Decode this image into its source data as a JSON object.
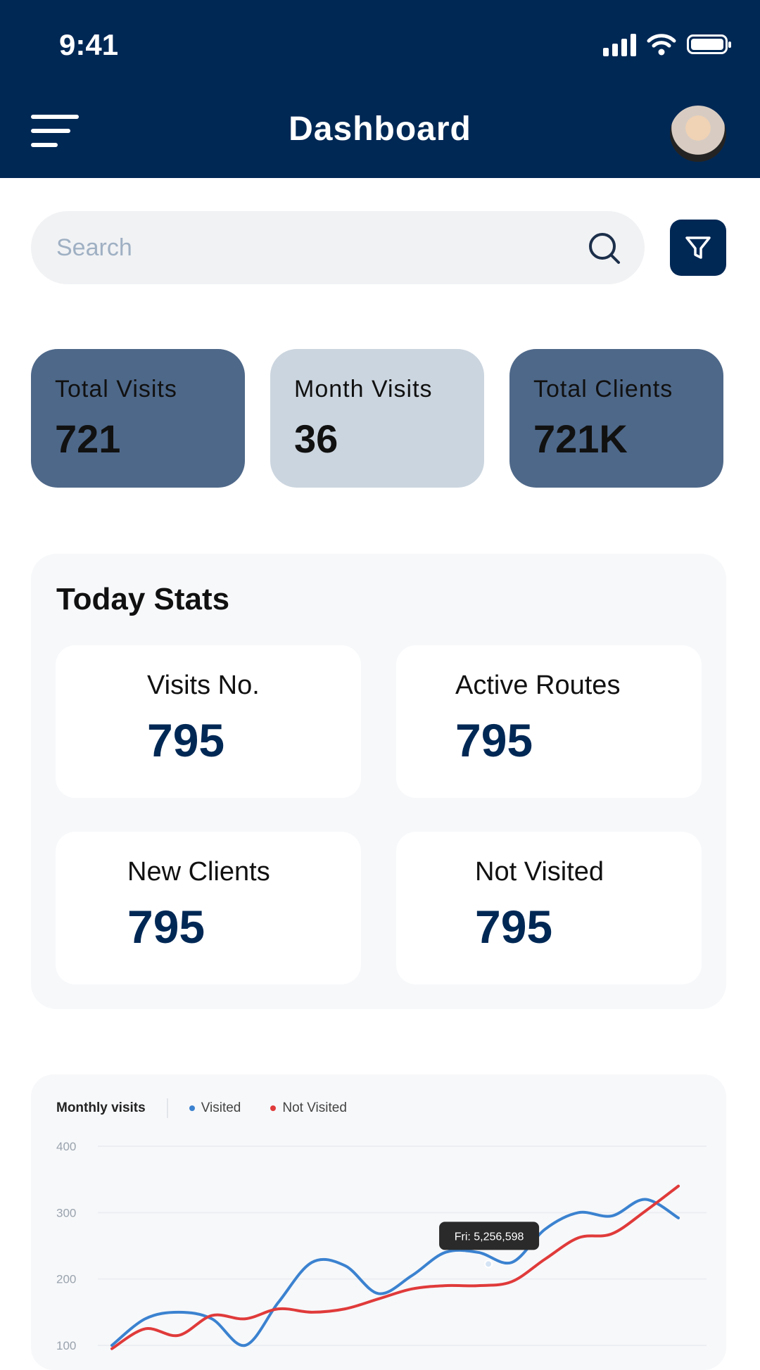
{
  "status_bar": {
    "time": "9:41"
  },
  "header": {
    "title": "Dashboard"
  },
  "search": {
    "placeholder": "Search"
  },
  "summary_cards": [
    {
      "label": "Total Visits",
      "value": "721",
      "color": "#4e6889"
    },
    {
      "label": "Month Visits",
      "value": "36",
      "color": "#cbd5df"
    },
    {
      "label": "Total Clients",
      "value": "721K",
      "color": "#4e6889"
    }
  ],
  "today_stats": {
    "title": "Today Stats",
    "items": [
      {
        "label": "Visits No.",
        "value": "795"
      },
      {
        "label": "Active Routes",
        "value": "795"
      },
      {
        "label": "New Clients",
        "value": "795"
      },
      {
        "label": "Not Visited",
        "value": "795"
      }
    ]
  },
  "chart_data": {
    "type": "line",
    "title": "Monthly visits",
    "legend_position": "top-left",
    "y_ticks": [
      "400",
      "300",
      "200",
      "100"
    ],
    "ylim": [
      100,
      400
    ],
    "grid": true,
    "x": [
      0,
      1,
      2,
      3,
      4,
      5,
      6,
      7,
      8,
      9,
      10,
      11,
      12,
      13,
      14,
      15,
      16,
      17
    ],
    "series": [
      {
        "name": "Visited",
        "color": "#3b82d0",
        "values": [
          100,
          140,
          150,
          140,
          100,
          165,
          225,
          220,
          178,
          205,
          240,
          240,
          225,
          275,
          300,
          295,
          320,
          292
        ]
      },
      {
        "name": "Not Visited",
        "color": "#e03a3a",
        "values": [
          95,
          125,
          115,
          145,
          140,
          155,
          150,
          155,
          170,
          185,
          190,
          190,
          196,
          230,
          262,
          268,
          302,
          340
        ]
      }
    ],
    "tooltip": {
      "text": "Fri: 5,256,598",
      "x": 11.3,
      "y": 265
    }
  }
}
